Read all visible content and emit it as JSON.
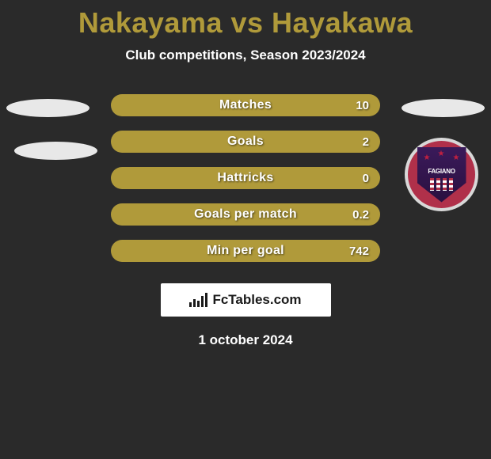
{
  "title": "Nakayama vs Hayakawa",
  "subtitle": "Club competitions, Season 2023/2024",
  "bar_color": "#b09a3a",
  "background_color": "#2a2a2a",
  "stats": [
    {
      "label": "Matches",
      "value": "10"
    },
    {
      "label": "Goals",
      "value": "2"
    },
    {
      "label": "Hattricks",
      "value": "0"
    },
    {
      "label": "Goals per match",
      "value": "0.2"
    },
    {
      "label": "Min per goal",
      "value": "742"
    }
  ],
  "badge": {
    "text": "FAGIANO",
    "bg_color": "#b0304a",
    "shield_color": "#2a1040"
  },
  "branding": {
    "name": "FcTables.com"
  },
  "date": "1 october 2024"
}
